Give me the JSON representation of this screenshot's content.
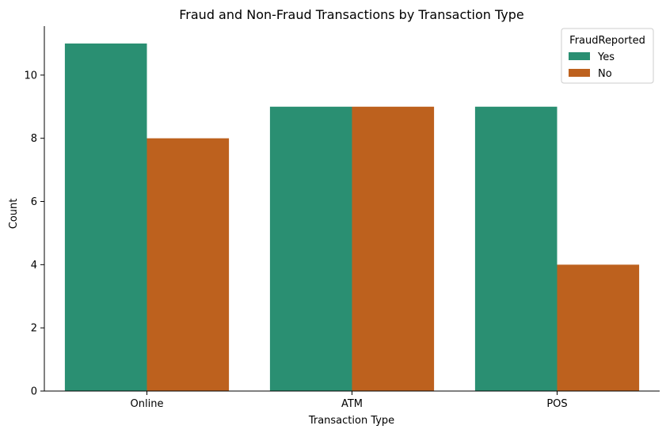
{
  "chart_data": {
    "type": "bar",
    "title": "Fraud and Non-Fraud Transactions by Transaction Type",
    "xlabel": "Transaction Type",
    "ylabel": "Count",
    "categories": [
      "Online",
      "ATM",
      "POS"
    ],
    "series": [
      {
        "name": "Yes",
        "values": [
          11,
          9,
          9
        ],
        "color": "#2a8f72"
      },
      {
        "name": "No",
        "values": [
          8,
          9,
          4
        ],
        "color": "#bd611e"
      }
    ],
    "ylim": [
      0,
      11.55
    ],
    "yticks": [
      0,
      2,
      4,
      6,
      8,
      10
    ],
    "grid": false,
    "legend": {
      "title": "FraudReported",
      "placement": "top-right"
    }
  }
}
